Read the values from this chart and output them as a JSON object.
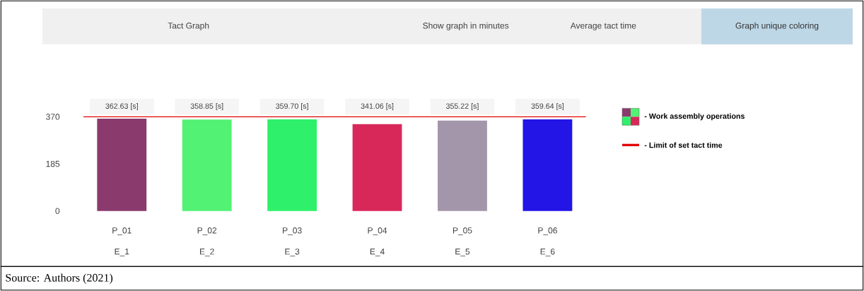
{
  "chart_data": {
    "type": "bar",
    "title": "Tact Graph",
    "categories": [
      "P_01",
      "P_02",
      "P_03",
      "P_04",
      "P_05",
      "P_06"
    ],
    "series": [
      {
        "name": "- Work assembly operations",
        "values": [
          362.6,
          358.9,
          359.7,
          341.1,
          355.2,
          359.6
        ],
        "colors": [
          "#8b3a6e",
          "#52f274",
          "#2ef06a",
          "#d8285a",
          "#a396aa",
          "#2215e6"
        ]
      }
    ],
    "value_labels": [
      "362.63 [s]",
      "358.85 [s]",
      "359.70 [s]",
      "341.06 [s]",
      "355.22 [s]",
      "359.64 [s]"
    ],
    "ylim": [
      0,
      370
    ],
    "yticks": [
      0,
      185,
      370
    ],
    "ref_lines": [
      {
        "axis": "y",
        "value": 370,
        "label": "- Limit of set tact time",
        "color": "#e00000"
      }
    ],
    "legend": "right",
    "annotations": [
      "Show graph in minutes",
      "Average tact time",
      "Graph unique coloring",
      "E_1",
      "E_2",
      "E_3",
      "E_4",
      "E_5",
      "E_6",
      "Source: Authors (2021)"
    ]
  }
}
